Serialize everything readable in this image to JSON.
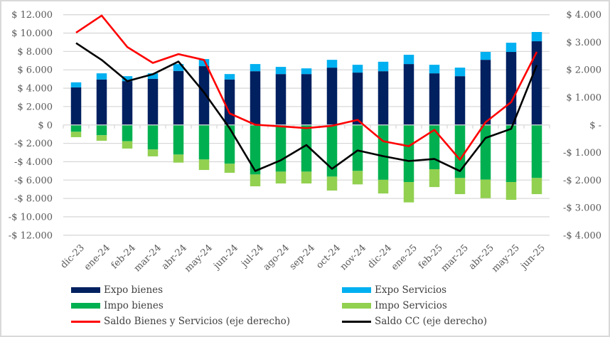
{
  "chart_data": {
    "type": "bar",
    "subtype": "stacked bar with line overlay (dual axis)",
    "title": "",
    "categories": [
      "dic-23",
      "ene-24",
      "feb-24",
      "mar-24",
      "abr-24",
      "may-24",
      "jun-24",
      "jul-24",
      "ago-24",
      "sep-24",
      "oct-24",
      "nov-24",
      "dic-24",
      "ene-25",
      "feb-25",
      "mar-25",
      "abr-25",
      "may-25",
      "jun-25"
    ],
    "left_axis": {
      "ylim": [
        -12000,
        12000
      ],
      "ticks": [
        12000,
        10000,
        8000,
        6000,
        4000,
        2000,
        0,
        -2000,
        -4000,
        -6000,
        -8000,
        -10000,
        -12000
      ],
      "tick_labels": [
        "$ 12.000",
        "$ 10.000",
        "$ 8.000",
        "$ 6.000",
        "$ 4.000",
        "$ 2.000",
        "$ 0",
        "-$ 2.000",
        "-$ 4.000",
        "-$ 6.000",
        "-$ 8.000",
        "-$ 10.000",
        "-$ 12.000"
      ]
    },
    "right_axis": {
      "ylim": [
        -4000,
        4000
      ],
      "ticks": [
        4000,
        3000,
        2000,
        1000,
        0,
        -1000,
        -2000,
        -3000,
        -4000
      ],
      "tick_labels": [
        "$ 4.000",
        "$ 3.000",
        "$ 2.000",
        "$ 1.000",
        "$ -",
        "-$ 1.000",
        "-$ 2.000",
        "-$ 3.000",
        "-$ 4.000"
      ]
    },
    "grid": true,
    "legend_position": "bottom",
    "series": [
      {
        "name": "Expo bienes",
        "type": "bar",
        "axis": "left",
        "stack": "pos",
        "color": "#002060",
        "values": [
          4090,
          4950,
          4770,
          5020,
          5880,
          6400,
          4950,
          5850,
          5540,
          5540,
          6240,
          5700,
          5850,
          6630,
          5620,
          5310,
          7090,
          7950,
          9110
        ]
      },
      {
        "name": "Expo Servicios",
        "type": "bar",
        "axis": "left",
        "stack": "pos",
        "color": "#00b0f0",
        "values": [
          550,
          670,
          540,
          600,
          750,
          770,
          590,
          780,
          780,
          620,
          850,
          850,
          1030,
          1010,
          930,
          930,
          860,
          1000,
          1010
        ]
      },
      {
        "name": "Impo bienes",
        "type": "bar",
        "axis": "left",
        "stack": "neg",
        "color": "#00b050",
        "values": [
          -740,
          -1120,
          -1770,
          -2670,
          -3220,
          -3760,
          -4220,
          -5390,
          -5080,
          -5080,
          -5620,
          -5000,
          -5970,
          -6210,
          -4820,
          -5770,
          -5950,
          -6210,
          -5770
        ]
      },
      {
        "name": "Impo Servicios",
        "type": "bar",
        "axis": "left",
        "stack": "neg",
        "color": "#92d050",
        "values": [
          -590,
          -600,
          -800,
          -750,
          -880,
          -1140,
          -990,
          -1290,
          -1290,
          -1290,
          -1520,
          -1470,
          -1490,
          -2220,
          -1940,
          -1760,
          -2020,
          -1940,
          -1760
        ]
      },
      {
        "name": "Saldo Bienes y Servicios (eje derecho)",
        "type": "line",
        "axis": "right",
        "color": "#ff0000",
        "values": [
          3350,
          3970,
          2830,
          2250,
          2570,
          2360,
          420,
          10,
          -50,
          -115,
          -30,
          185,
          -590,
          -770,
          -180,
          -1260,
          100,
          830,
          2650
        ]
      },
      {
        "name": "Saldo CC (eje derecho)",
        "type": "line",
        "axis": "right",
        "color": "#000000",
        "values": [
          2970,
          2360,
          1590,
          1840,
          2300,
          1180,
          -120,
          -1670,
          -1280,
          -730,
          -1590,
          -925,
          -1130,
          -1310,
          -1235,
          -1675,
          -470,
          -140,
          2170
        ]
      }
    ]
  }
}
